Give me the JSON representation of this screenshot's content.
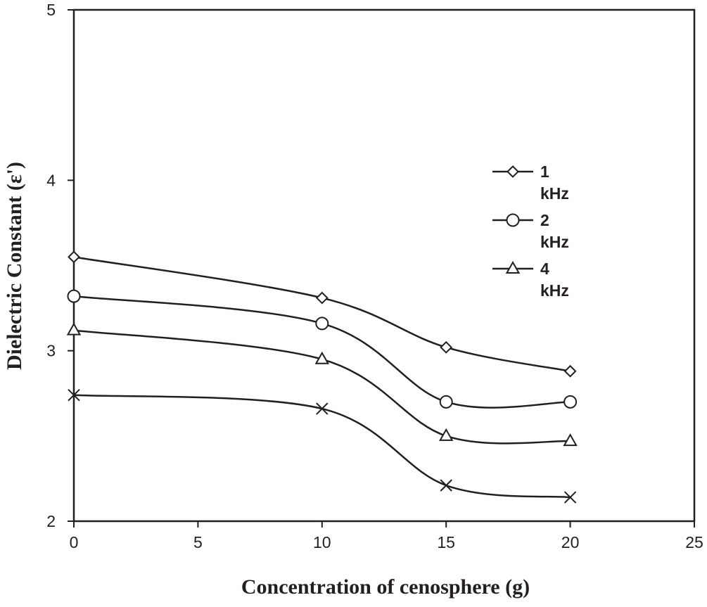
{
  "chart_data": {
    "type": "line",
    "title": "",
    "xlabel": "Concentration of cenosphere (g)",
    "ylabel": "Dielectric Constant (ε')",
    "xlim": [
      0,
      25
    ],
    "ylim": [
      2,
      5
    ],
    "xticks": [
      0,
      5,
      10,
      15,
      20,
      25
    ],
    "xtick_labels": [
      "0",
      "5",
      "10",
      "15",
      "20",
      "25"
    ],
    "yticks": [
      2,
      3,
      4,
      5
    ],
    "ytick_labels": [
      "2",
      "3",
      "4",
      "5"
    ],
    "grid": false,
    "legend_position": "right",
    "x": [
      0,
      10,
      15,
      20
    ],
    "series": [
      {
        "name": "1 kHz",
        "label_line1": "1",
        "label_line2": "kHz",
        "marker": "diamond",
        "values": [
          3.55,
          3.31,
          3.02,
          2.88
        ]
      },
      {
        "name": "2 kHz",
        "label_line1": "2",
        "label_line2": "kHz",
        "marker": "circle",
        "values": [
          3.32,
          3.16,
          2.7,
          2.7
        ]
      },
      {
        "name": "4 kHz",
        "label_line1": "4",
        "label_line2": "kHz",
        "marker": "triangle",
        "values": [
          3.12,
          2.95,
          2.5,
          2.47
        ]
      },
      {
        "name": "",
        "marker": "x",
        "values": [
          2.74,
          2.66,
          2.21,
          2.14
        ]
      }
    ],
    "colors": {
      "line": "#231f20",
      "background": "#ffffff"
    }
  }
}
